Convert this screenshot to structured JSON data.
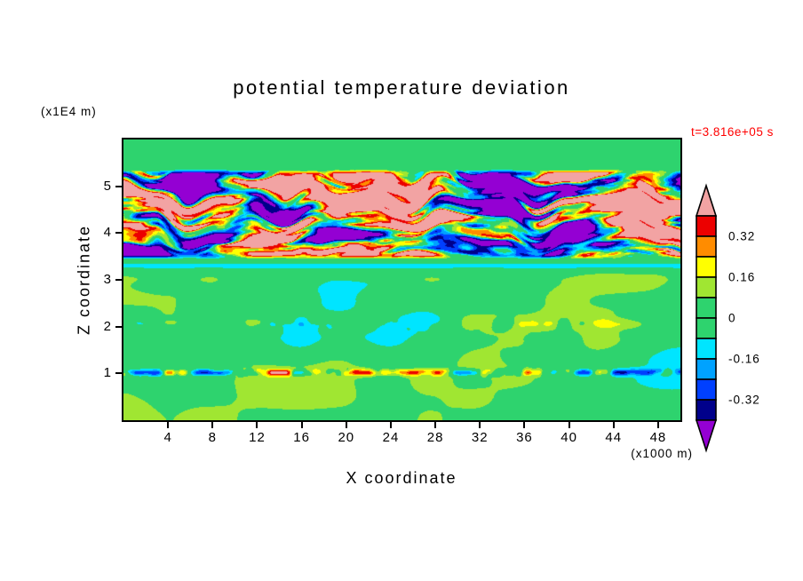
{
  "chart_data": {
    "type": "filled_contour",
    "title": "potential temperature deviation",
    "time_annotation": "t=3.816e+05 s",
    "time_annotation_color": "#ff0000",
    "xlabel": "X coordinate",
    "x_units": "(x1000 m)",
    "ylabel": "Z coordinate",
    "y_units": "(x1E4 m)",
    "x_range": [
      0,
      50
    ],
    "x_ticks": [
      4,
      8,
      12,
      16,
      20,
      24,
      28,
      32,
      36,
      40,
      44,
      48
    ],
    "z_range": [
      0,
      6
    ],
    "z_ticks": [
      1,
      2,
      3,
      4,
      5
    ],
    "grid": false,
    "frame_color": "#000000",
    "background_color": "#ffffff",
    "colorbar": {
      "orientation": "vertical",
      "position": "right",
      "extend_arrows": true,
      "levels": [
        -0.4,
        -0.32,
        -0.24,
        -0.16,
        -0.08,
        0,
        0.08,
        0.16,
        0.24,
        0.32,
        0.4
      ],
      "colors_low_to_high": [
        "#9400d3",
        "#00008b",
        "#0040ff",
        "#00a2ff",
        "#00e5ff",
        "#2ed36e",
        "#2ed36e",
        "#a0e632",
        "#ffff00",
        "#ff8c00",
        "#ec0000",
        "#f2a3a3"
      ],
      "tick_labels": [
        "0.32",
        "0.16",
        "0",
        "-0.16",
        "-0.32"
      ],
      "tick_label_values": [
        0.32,
        0.16,
        0,
        -0.16,
        -0.32
      ]
    },
    "field": {
      "description": "Horizontally streaked potential-temperature-deviation field: strongly saturated turbulent layer between z=3.4 and z=5.4 (alternating pink/red/orange and navy/blue streaks), a thin cyan interface line near z=3.3, a weak blobby near-zero field below (green with light yellow-green patches), a thin dashed shear streak near z=1 with yellow/orange spots, and a faint dotted streak near z=2.",
      "value_at_background": 0,
      "features": [
        {
          "kind": "noise_band",
          "name": "upper-turbulent-layer",
          "z_min": 3.42,
          "z_max": 5.38,
          "edge": 0.14,
          "amplitude": 0.6,
          "gain": 3.5,
          "x_scale": 0.15,
          "z_scale": 3.6,
          "octaves": 3,
          "seed": 11,
          "bias": 0.02,
          "warp": 0.55
        },
        {
          "kind": "gaussian_line",
          "name": "cyan-interface-line",
          "z_center": 3.3,
          "z_sigma": 0.05,
          "value": -0.13
        },
        {
          "kind": "noise_band",
          "name": "lower-weak-blobs",
          "z_min": -0.6,
          "z_max": 3.32,
          "edge": 0.35,
          "amplitude": 0.22,
          "gain": 1.0,
          "x_scale": 0.12,
          "z_scale": 1.1,
          "octaves": 2,
          "seed": 29,
          "bias": 0.02,
          "warp": 0
        },
        {
          "kind": "noise_gaussian_line",
          "name": "shear-streak-z1",
          "z_center": 1.02,
          "z_sigma": 0.05,
          "amplitude": 0.38,
          "gain": 2.0,
          "x_scale": 0.7,
          "z_scale": 2.0,
          "octaves": 2,
          "seed": 47,
          "bias": 0
        },
        {
          "kind": "noise_gaussian_line",
          "name": "weak-streak-z2",
          "z_center": 2.05,
          "z_sigma": 0.09,
          "amplitude": 0.15,
          "gain": 1.5,
          "x_scale": 0.5,
          "z_scale": 2.0,
          "octaves": 2,
          "seed": 61,
          "bias": 0
        }
      ]
    }
  }
}
